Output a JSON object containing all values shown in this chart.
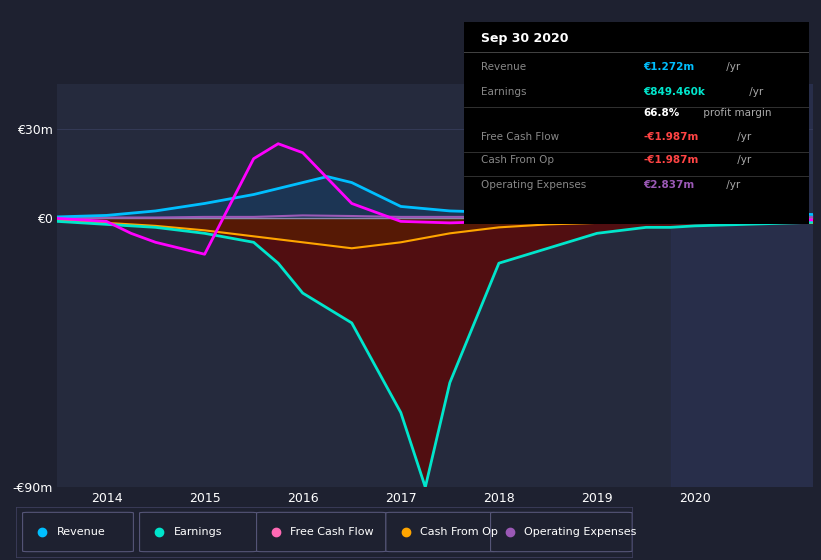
{
  "bg_color": "#1e2130",
  "plot_bg_color": "#252a3d",
  "highlight_bg_color": "#2a3050",
  "ylim": [
    -90,
    45
  ],
  "xlim": [
    2013.5,
    2021.2
  ],
  "yticks": [
    30,
    0,
    -90
  ],
  "ytick_labels": [
    "€30m",
    "€0",
    "-€90m"
  ],
  "xticks": [
    2014,
    2015,
    2016,
    2017,
    2018,
    2019,
    2020
  ],
  "grid_color": "#3a4060",
  "highlight_start": 2019.75,
  "highlight_end": 2021.2,
  "series": {
    "revenue": {
      "color": "#00bfff",
      "fill_color": "#1a3a5c",
      "label": "Revenue",
      "x": [
        2013.5,
        2014.0,
        2014.5,
        2015.0,
        2015.5,
        2016.0,
        2016.25,
        2016.5,
        2016.75,
        2017.0,
        2017.5,
        2018.0,
        2018.5,
        2019.0,
        2019.5,
        2019.75,
        2020.0,
        2020.5,
        2021.0,
        2021.2
      ],
      "y": [
        0.5,
        1.0,
        2.5,
        5.0,
        8.0,
        12.0,
        14.0,
        12.0,
        8.0,
        4.0,
        2.5,
        2.0,
        2.5,
        3.0,
        3.0,
        3.0,
        2.5,
        2.0,
        1.5,
        1.3
      ]
    },
    "earnings": {
      "color": "#00e5cc",
      "fill_color": "#003333",
      "label": "Earnings",
      "x": [
        2013.5,
        2014.0,
        2014.5,
        2015.0,
        2015.5,
        2015.75,
        2016.0,
        2016.5,
        2017.0,
        2017.25,
        2017.5,
        2018.0,
        2018.5,
        2019.0,
        2019.5,
        2019.75,
        2020.0,
        2020.5,
        2021.0,
        2021.2
      ],
      "y": [
        -1.0,
        -2.0,
        -3.0,
        -5.0,
        -8.0,
        -15.0,
        -25.0,
        -35.0,
        -65.0,
        -90.0,
        -55.0,
        -15.0,
        -10.0,
        -5.0,
        -3.0,
        -3.0,
        -2.5,
        -2.0,
        -1.5,
        -1.3
      ]
    },
    "free_cash_flow": {
      "color": "#ff00ff",
      "label": "Free Cash Flow",
      "x": [
        2013.5,
        2014.0,
        2014.25,
        2014.5,
        2015.0,
        2015.5,
        2015.75,
        2016.0,
        2016.5,
        2017.0,
        2017.5,
        2018.0,
        2018.5,
        2019.0,
        2019.5,
        2019.75,
        2020.0,
        2020.5,
        2021.0,
        2021.2
      ],
      "y": [
        0,
        -1.0,
        -5.0,
        -8.0,
        -12.0,
        20.0,
        25.0,
        22.0,
        5.0,
        -1.0,
        -1.5,
        -1.0,
        -0.5,
        -0.5,
        -0.5,
        -0.5,
        -0.5,
        -0.5,
        -0.5,
        -0.5
      ]
    },
    "cash_from_op": {
      "color": "#ffa500",
      "fill_color": "#5a2000",
      "label": "Cash From Op",
      "x": [
        2013.5,
        2014.0,
        2014.5,
        2015.0,
        2015.5,
        2016.0,
        2016.5,
        2017.0,
        2017.5,
        2018.0,
        2018.5,
        2019.0,
        2019.5,
        2019.75,
        2020.0,
        2020.5,
        2021.0,
        2021.2
      ],
      "y": [
        -0.5,
        -1.5,
        -2.5,
        -4.0,
        -6.0,
        -8.0,
        -10.0,
        -8.0,
        -5.0,
        -3.0,
        -2.0,
        -1.5,
        -1.5,
        -1.5,
        -1.5,
        -1.5,
        -1.5,
        -1.5
      ]
    },
    "operating_expenses": {
      "color": "#9b59b6",
      "label": "Operating Expenses",
      "x": [
        2013.5,
        2014.0,
        2014.5,
        2015.0,
        2015.5,
        2016.0,
        2016.5,
        2017.0,
        2017.5,
        2018.0,
        2018.5,
        2019.0,
        2019.5,
        2019.75,
        2020.0,
        2020.5,
        2021.0,
        2021.2
      ],
      "y": [
        0.2,
        0.3,
        0.3,
        0.5,
        0.5,
        1.0,
        0.8,
        0.5,
        0.5,
        0.5,
        0.5,
        0.5,
        0.5,
        0.5,
        0.5,
        0.5,
        0.5,
        0.5
      ]
    }
  },
  "info_box": {
    "title": "Sep 30 2020",
    "rows": [
      {
        "label": "Revenue",
        "value": "€1.272m",
        "value_color": "#00bfff",
        "suffix": " /yr"
      },
      {
        "label": "Earnings",
        "value": "€849.460k",
        "value_color": "#00e5cc",
        "suffix": " /yr"
      },
      {
        "label": "",
        "value": "66.8%",
        "value_color": "#ffffff",
        "suffix": " profit margin"
      },
      {
        "label": "Free Cash Flow",
        "value": "-€1.987m",
        "value_color": "#ff4444",
        "suffix": " /yr"
      },
      {
        "label": "Cash From Op",
        "value": "-€1.987m",
        "value_color": "#ff4444",
        "suffix": " /yr"
      },
      {
        "label": "Operating Expenses",
        "value": "€2.837m",
        "value_color": "#9b59b6",
        "suffix": " /yr"
      }
    ]
  },
  "legend": [
    {
      "label": "Revenue",
      "color": "#00bfff"
    },
    {
      "label": "Earnings",
      "color": "#00e5cc"
    },
    {
      "label": "Free Cash Flow",
      "color": "#ff69b4"
    },
    {
      "label": "Cash From Op",
      "color": "#ffa500"
    },
    {
      "label": "Operating Expenses",
      "color": "#9b59b6"
    }
  ]
}
